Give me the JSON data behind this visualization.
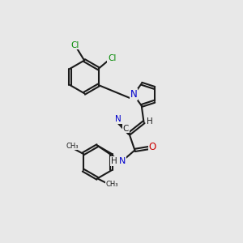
{
  "background_color": "#e8e8e8",
  "bond_color": "#1a1a1a",
  "N_color": "#0000cc",
  "O_color": "#cc0000",
  "Cl_color": "#008800",
  "C_color": "#1a1a1a",
  "figsize": [
    3.0,
    3.0
  ],
  "dpi": 100,
  "xlim": [
    0,
    10
  ],
  "ylim": [
    0,
    10
  ]
}
